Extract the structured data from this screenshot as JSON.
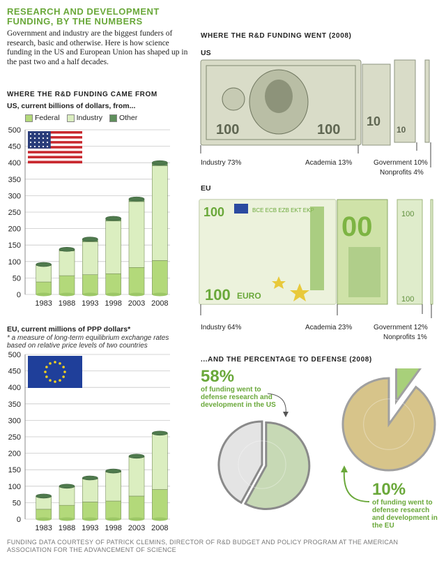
{
  "title_lines": [
    "RESEARCH AND DEVELOPMENT",
    "FUNDING, BY THE NUMBERS"
  ],
  "intro": "Government and industry are the biggest funders of research, basic and otherwise. Here is how science funding in the US and European Union has shaped up in the past two and a half decades.",
  "source_head": "WHERE THE R&D FUNDING CAME FROM",
  "went_head": "WHERE THE  R&D FUNDING WENT (2008)",
  "defense_head": "...AND THE PERCENTAGE TO DEFENSE (2008)",
  "legend": [
    "Federal",
    "Industry",
    "Other"
  ],
  "colors": {
    "federal": "#b3d97a",
    "industry": "#dbeec0",
    "other": "#5f8f5c",
    "accent": "#6aa83a"
  },
  "icons": {
    "us_flag": "us-flag-icon",
    "eu_flag": "eu-flag-icon",
    "dollar": "dollar-sign-icon",
    "euro": "euro-sign-icon",
    "banknote": "banknote-icon",
    "coin": "coin-icon"
  },
  "chart_data": [
    {
      "type": "bar",
      "title": "US, current billions of dollars, from...",
      "categories": [
        "1983",
        "1988",
        "1993",
        "1998",
        "2003",
        "2008"
      ],
      "series": [
        {
          "name": "Federal",
          "values": [
            38,
            57,
            60,
            63,
            82,
            103
          ]
        },
        {
          "name": "Industry",
          "values": [
            50,
            75,
            100,
            160,
            200,
            288
          ]
        },
        {
          "name": "Other",
          "values": [
            3,
            5,
            8,
            8,
            8,
            9
          ]
        }
      ],
      "ylim": [
        0,
        500
      ],
      "yticks": [
        0,
        50,
        100,
        150,
        200,
        250,
        300,
        350,
        400,
        450,
        500
      ]
    },
    {
      "type": "bar",
      "title": "EU, current millions of PPP dollars*",
      "note": "* a measure of long-term equilibrium exchange rates based on relative price levels of two countries",
      "categories": [
        "1983",
        "1988",
        "1993",
        "1998",
        "2003",
        "2008"
      ],
      "series": [
        {
          "name": "Federal",
          "values": [
            30,
            42,
            52,
            55,
            70,
            90
          ]
        },
        {
          "name": "Industry",
          "values": [
            38,
            55,
            70,
            88,
            118,
            168
          ]
        },
        {
          "name": "Other",
          "values": [
            2,
            3,
            3,
            3,
            3,
            3
          ]
        }
      ],
      "ylim": [
        0,
        500
      ],
      "yticks": [
        0,
        50,
        100,
        150,
        200,
        250,
        300,
        350,
        400,
        450,
        500
      ]
    },
    {
      "type": "bar",
      "title": "US",
      "categories": [
        "Industry",
        "Academia",
        "Government",
        "Nonprofits"
      ],
      "values": [
        73,
        13,
        10,
        4
      ],
      "labels": [
        "Industry 73%",
        "Academia 13%",
        "Government 10%",
        "Nonprofits 4%"
      ]
    },
    {
      "type": "bar",
      "title": "EU",
      "categories": [
        "Industry",
        "Academia",
        "Government",
        "Nonprofits"
      ],
      "values": [
        64,
        23,
        12,
        1
      ],
      "labels": [
        "Industry 64%",
        "Academia 23%",
        "Government 12%",
        "Nonprofits 1%"
      ]
    },
    {
      "type": "pie",
      "title": "US",
      "values": [
        58,
        42
      ],
      "big": "58%",
      "caption": "of funding went to defense research and development in the US"
    },
    {
      "type": "pie",
      "title": "EU",
      "values": [
        10,
        90
      ],
      "big": "10%",
      "caption": "of funding went to defense research and development in the EU"
    }
  ],
  "credit": "FUNDING DATA COURTESY OF PATRICK CLEMINS, DIRECTOR OF R&D BUDGET AND POLICY PROGRAM AT THE AMERICAN ASSOCIATION FOR THE ADVANCEMENT OF SCIENCE"
}
